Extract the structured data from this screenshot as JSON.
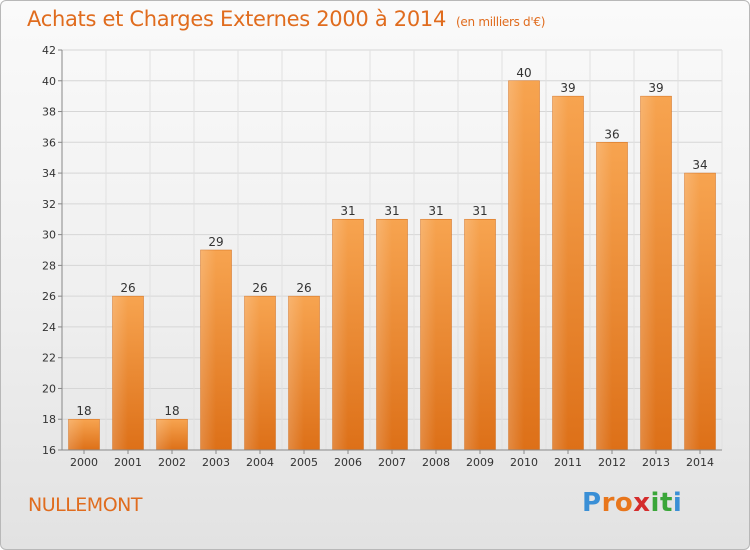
{
  "header": {
    "title": "Achats et Charges Externes 2000 à 2014",
    "subtitle": "(en milliers d'€)"
  },
  "footer": {
    "commune": "NULLEMONT",
    "logo_letters": [
      "P",
      "r",
      "o",
      "x",
      "i",
      "t",
      "i"
    ],
    "logo_colors": [
      "#3a8fd6",
      "#e8761c",
      "#e8761c",
      "#d42c2c",
      "#3aa639",
      "#3aa639",
      "#3a8fd6"
    ]
  },
  "chart_data": {
    "type": "bar",
    "categories": [
      "2000",
      "2001",
      "2002",
      "2003",
      "2004",
      "2005",
      "2006",
      "2007",
      "2008",
      "2009",
      "2010",
      "2011",
      "2012",
      "2013",
      "2014"
    ],
    "values": [
      18,
      26,
      18,
      29,
      26,
      26,
      31,
      31,
      31,
      31,
      40,
      39,
      36,
      39,
      34
    ],
    "data_labels": [
      "18",
      "26",
      "18",
      "29",
      "26",
      "26",
      "31",
      "31",
      "31",
      "31",
      "40",
      "39",
      "36",
      "39",
      "34"
    ],
    "ylim": [
      16,
      42
    ],
    "yticks": [
      "16",
      "18",
      "20",
      "22",
      "24",
      "26",
      "28",
      "30",
      "32",
      "34",
      "36",
      "38",
      "40",
      "42"
    ],
    "grid": true,
    "bar_color": "#f0902f"
  }
}
